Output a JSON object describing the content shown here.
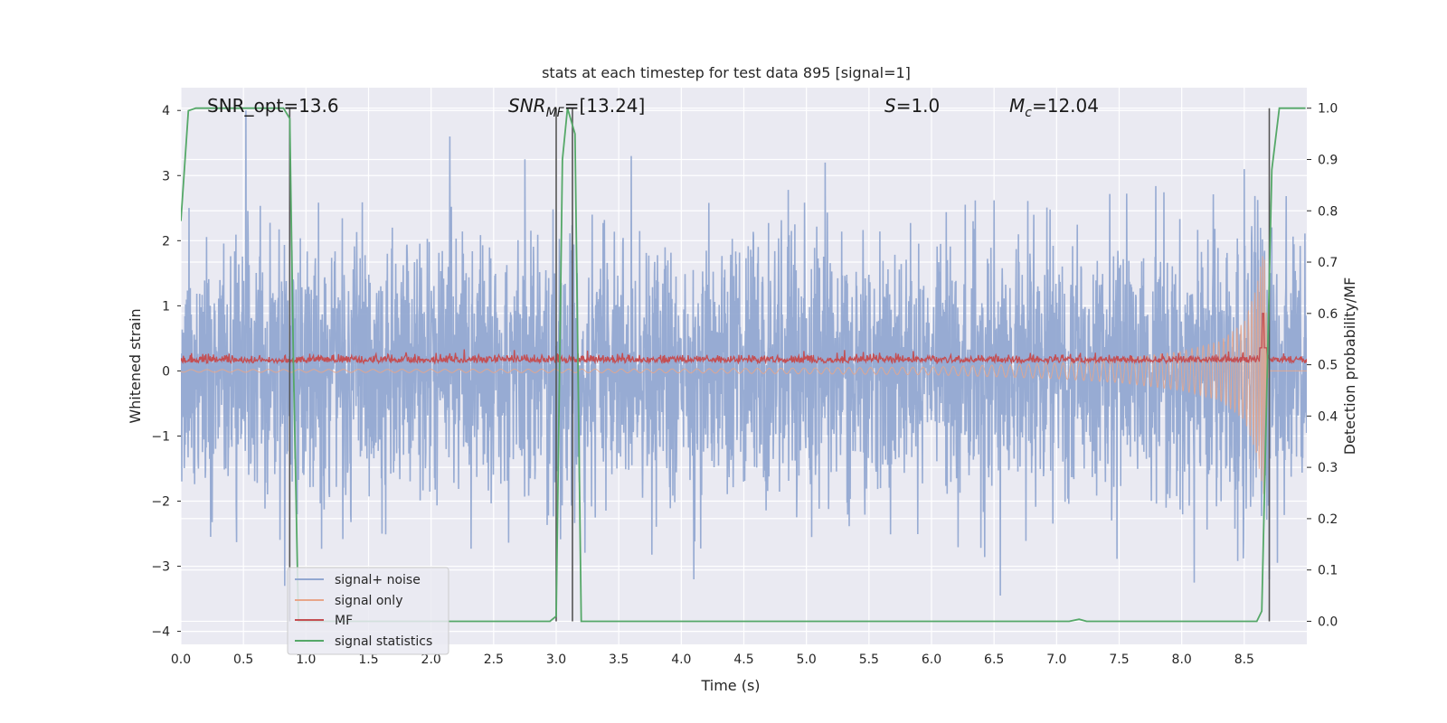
{
  "chart_data": {
    "type": "line",
    "title": "stats at each timestep for test data 895 [signal=1]",
    "xlabel": "Time (s)",
    "ylabel": "Whitened strain",
    "y2label": "Detection probability/MF",
    "xlim": [
      0.0,
      9.0
    ],
    "ylim": [
      -4.2,
      4.35
    ],
    "y2lim": [
      -0.045,
      1.04
    ],
    "xticks": [
      "0.0",
      "0.5",
      "1.0",
      "1.5",
      "2.0",
      "2.5",
      "3.0",
      "3.5",
      "4.0",
      "4.5",
      "5.0",
      "5.5",
      "6.0",
      "6.5",
      "7.0",
      "7.5",
      "8.0",
      "8.5"
    ],
    "yticks": [
      "4",
      "3",
      "2",
      "1",
      "0",
      "−1",
      "−2",
      "−3",
      "−4"
    ],
    "y2ticks": [
      "1.0",
      "0.9",
      "0.8",
      "0.7",
      "0.6",
      "0.5",
      "0.4",
      "0.3",
      "0.2",
      "0.1",
      "0.0"
    ],
    "grid": true,
    "legend_position": "lower-left",
    "annotations": {
      "snr_opt": "SNR_opt=13.6",
      "snr_mf_sym": "SNR",
      "snr_mf_sub": "MF",
      "snr_mf_val": "=[13.24]",
      "s_sym": "S",
      "s_val": "=1.0",
      "mc_sym": "M",
      "mc_sub": "c",
      "mc_val": "=12.04"
    },
    "vlines_x": [
      0.87,
      3.0,
      3.13,
      8.7
    ],
    "series": [
      {
        "name": "signal+ noise",
        "color": "#92a8d1",
        "description_values": "noise amplitude ~N(0,1), peaks to about +/-3.5",
        "peaks": [
          [
            0.52,
            4.0
          ],
          [
            0.83,
            -3.3
          ],
          [
            2.15,
            3.6
          ],
          [
            2.75,
            3.25
          ],
          [
            3.6,
            3.3
          ],
          [
            4.1,
            -3.2
          ],
          [
            5.15,
            3.2
          ],
          [
            6.55,
            -3.45
          ],
          [
            8.5,
            3.1
          ],
          [
            8.1,
            -3.25
          ],
          [
            8.7,
            -3.2
          ]
        ]
      },
      {
        "name": "signal only",
        "color": "#e8a68a",
        "envelope": [
          [
            0.0,
            0.02
          ],
          [
            4.0,
            0.03
          ],
          [
            6.0,
            0.06
          ],
          [
            7.0,
            0.12
          ],
          [
            7.5,
            0.18
          ],
          [
            8.0,
            0.3
          ],
          [
            8.3,
            0.45
          ],
          [
            8.5,
            0.75
          ],
          [
            8.6,
            1.3
          ],
          [
            8.66,
            1.95
          ],
          [
            8.69,
            0.0
          ]
        ]
      },
      {
        "name": "MF",
        "color": "#c44e52",
        "base_y2": 0.503,
        "spike": [
          8.65,
          0.6
        ]
      },
      {
        "name": "signal statistics",
        "color": "#55a868",
        "points": [
          [
            0.0,
            0.78
          ],
          [
            0.06,
            0.995
          ],
          [
            0.12,
            1.0
          ],
          [
            0.6,
            1.0
          ],
          [
            0.82,
            1.0
          ],
          [
            0.87,
            0.98
          ],
          [
            0.9,
            0.5
          ],
          [
            0.94,
            0.0
          ],
          [
            2.95,
            0.0
          ],
          [
            3.0,
            0.01
          ],
          [
            3.05,
            0.9
          ],
          [
            3.09,
            1.0
          ],
          [
            3.15,
            0.95
          ],
          [
            3.2,
            0.0
          ],
          [
            7.1,
            0.0
          ],
          [
            7.18,
            0.004
          ],
          [
            7.24,
            0.0
          ],
          [
            8.6,
            0.0
          ],
          [
            8.64,
            0.02
          ],
          [
            8.72,
            0.88
          ],
          [
            8.78,
            1.0
          ],
          [
            8.99,
            1.0
          ]
        ]
      }
    ]
  }
}
